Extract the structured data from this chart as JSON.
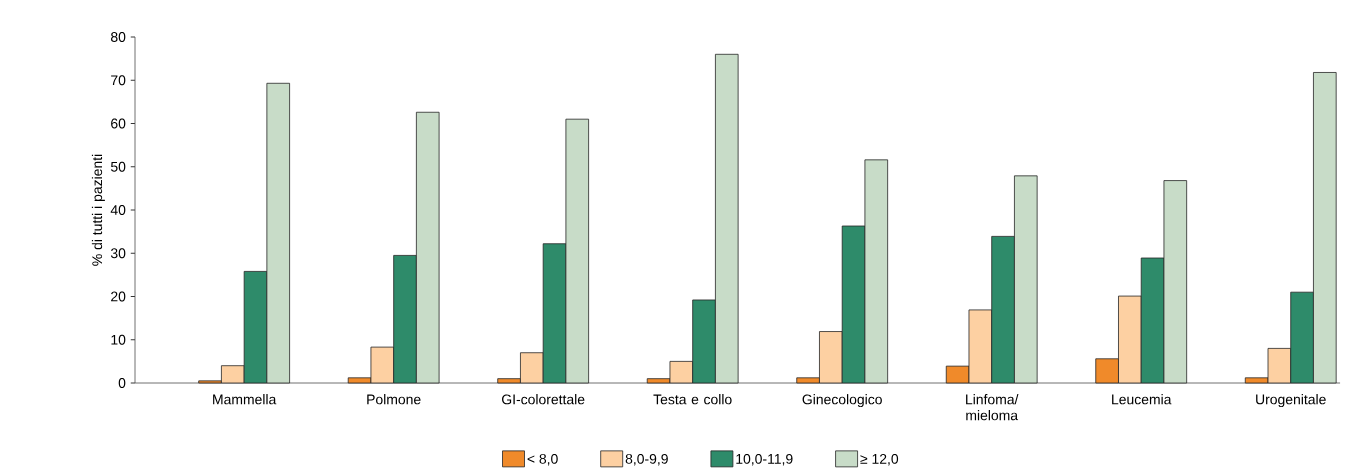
{
  "chart_data": {
    "type": "bar",
    "ylabel": "% di tutti i pazienti",
    "categories": [
      "Mammella",
      "Polmone",
      "GI-colorettale",
      "Testa e collo",
      "Ginecologico",
      "Linfoma/ mieloma",
      "Leucemia",
      "Urogenitale"
    ],
    "series": [
      {
        "name": "< 8,0",
        "color": "#f08a2a",
        "values": [
          0.5,
          1.2,
          1.0,
          1.0,
          1.2,
          3.9,
          5.6,
          1.2
        ]
      },
      {
        "name": "8,0-9,9",
        "color": "#fdd0a2",
        "values": [
          4.0,
          8.3,
          7.0,
          5.0,
          11.9,
          16.9,
          20.1,
          8.0
        ]
      },
      {
        "name": "10,0-11,9",
        "color": "#2e8b6a",
        "values": [
          25.8,
          29.5,
          32.2,
          19.2,
          36.3,
          33.9,
          28.9,
          21.0
        ]
      },
      {
        "name": "≥ 12,0",
        "color": "#c8dcc8",
        "values": [
          69.3,
          62.6,
          61.0,
          76.0,
          51.6,
          47.9,
          46.8,
          71.8
        ]
      }
    ],
    "ylim": [
      0,
      80
    ],
    "yticks": [
      0,
      10,
      20,
      30,
      40,
      50,
      60,
      70,
      80
    ],
    "grid": false,
    "legend": "bottom"
  }
}
